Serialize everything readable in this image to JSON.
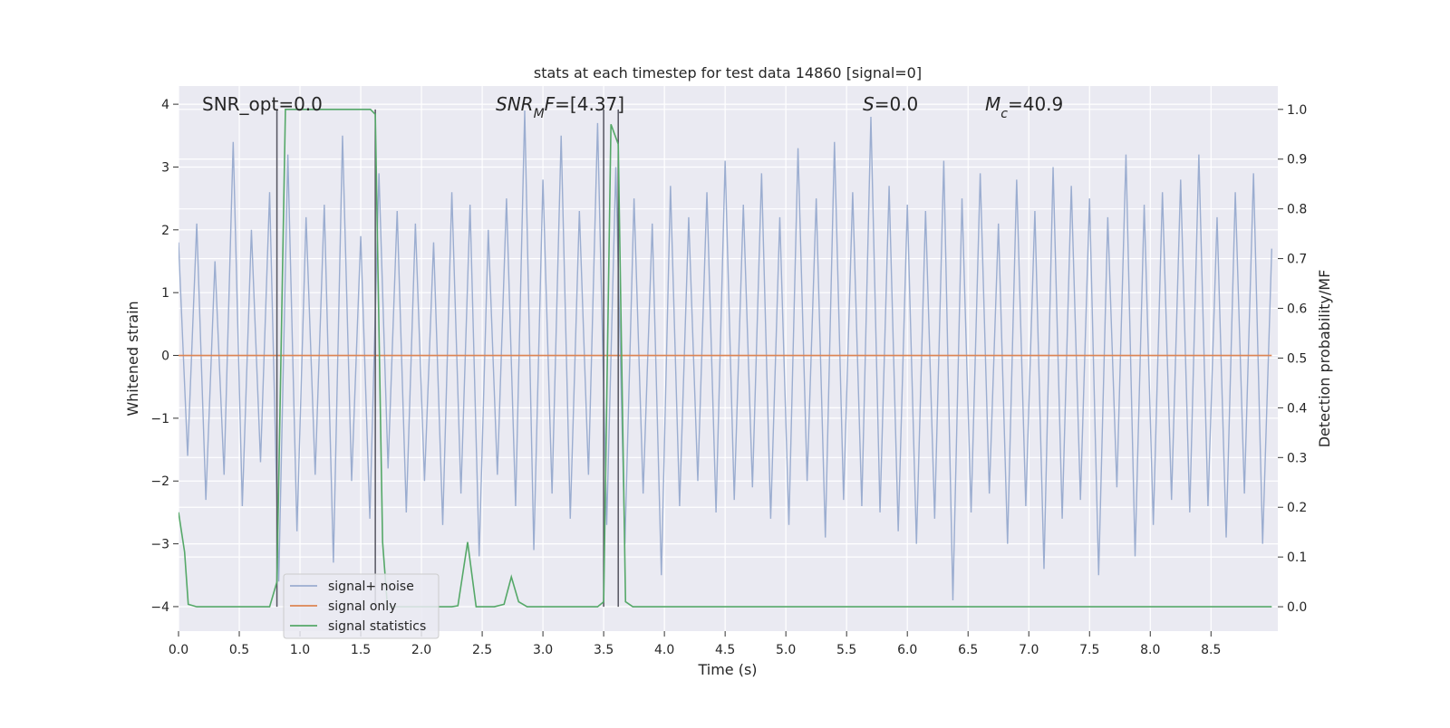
{
  "chart_data": {
    "type": "line",
    "title": "stats at each timestep for test data 14860 [signal=0]",
    "xlabel": "Time (s)",
    "ylabel": "Whitened strain",
    "y2label": "Detection probability/MF",
    "xlim": [
      0,
      9.05
    ],
    "ylim": [
      -4.39,
      4.29
    ],
    "y2lim": [
      -0.049,
      1.047
    ],
    "xticks": [
      {
        "value": 0,
        "label": "0.0"
      },
      0.5,
      {
        "value": 1,
        "label": "1.0"
      },
      1.5,
      {
        "value": 2,
        "label": "2.0"
      },
      2.5,
      {
        "value": 3,
        "label": "3.0"
      },
      3.5,
      {
        "value": 4,
        "label": "4.0"
      },
      4.5,
      {
        "value": 5,
        "label": "5.0"
      },
      5.5,
      {
        "value": 6,
        "label": "6.0"
      },
      6.5,
      {
        "value": 7,
        "label": "7.0"
      },
      7.5,
      {
        "value": 8,
        "label": "8.0"
      },
      8.5
    ],
    "yticks": [
      {
        "value": -4,
        "label": "−4"
      },
      {
        "value": -3,
        "label": "−3"
      },
      {
        "value": -2,
        "label": "−2"
      },
      {
        "value": -1,
        "label": "−1"
      },
      0,
      1,
      2,
      3,
      4
    ],
    "y2ticks": [
      {
        "value": 0,
        "label": "0.0"
      },
      0.1,
      0.2,
      0.3,
      0.4,
      0.5,
      0.6,
      0.7,
      0.8,
      0.9,
      {
        "value": 1,
        "label": "1.0"
      }
    ],
    "grid": true,
    "annotations": [
      [
        [
          "SNR_opt=0.0",
          "normal"
        ]
      ],
      [
        [
          "SNR",
          "italic"
        ],
        [
          "M",
          "sub"
        ],
        [
          "F",
          "italic"
        ],
        [
          "=[4.37]",
          "normal"
        ]
      ],
      [
        [
          "S",
          "italic"
        ],
        [
          "=0.0",
          "normal"
        ]
      ],
      [
        [
          "M",
          "italic"
        ],
        [
          "c",
          "sub"
        ],
        [
          "=40.9",
          "normal"
        ]
      ]
    ],
    "vlines": [
      0.81,
      1.62,
      3.5,
      3.62
    ],
    "vline_color": "#555560",
    "series": [
      {
        "name": "signal+ noise",
        "color": "#9badd0",
        "x": [
          0,
          0.075,
          0.15,
          0.225,
          0.3,
          0.375,
          0.45,
          0.525,
          0.6,
          0.675,
          0.75,
          0.825,
          0.9,
          0.975,
          1.05,
          1.125,
          1.2,
          1.275,
          1.35,
          1.425,
          1.5,
          1.575,
          1.65,
          1.725,
          1.8,
          1.875,
          1.95,
          2.025,
          2.1,
          2.175,
          2.25,
          2.325,
          2.4,
          2.475,
          2.55,
          2.625,
          2.7,
          2.775,
          2.85,
          2.925,
          3,
          3.075,
          3.15,
          3.225,
          3.3,
          3.375,
          3.45,
          3.525,
          3.6,
          3.675,
          3.75,
          3.825,
          3.9,
          3.975,
          4.05,
          4.125,
          4.2,
          4.275,
          4.35,
          4.425,
          4.5,
          4.575,
          4.65,
          4.725,
          4.8,
          4.875,
          4.95,
          5.025,
          5.1,
          5.175,
          5.25,
          5.325,
          5.4,
          5.475,
          5.55,
          5.625,
          5.7,
          5.775,
          5.85,
          5.925,
          6,
          6.075,
          6.15,
          6.225,
          6.3,
          6.375,
          6.45,
          6.525,
          6.6,
          6.675,
          6.75,
          6.825,
          6.9,
          6.975,
          7.05,
          7.125,
          7.2,
          7.275,
          7.35,
          7.425,
          7.5,
          7.575,
          7.65,
          7.725,
          7.8,
          7.875,
          7.95,
          8.025,
          8.1,
          8.175,
          8.25,
          8.325,
          8.4,
          8.475,
          8.55,
          8.625,
          8.7,
          8.775,
          8.85,
          8.925,
          9
        ],
        "values": [
          1.8,
          -1.6,
          2.1,
          -2.3,
          1.5,
          -1.9,
          3.4,
          -2.4,
          2.0,
          -1.7,
          2.6,
          -3.6,
          3.2,
          -2.8,
          2.2,
          -1.9,
          2.4,
          -3.3,
          3.5,
          -2.0,
          1.9,
          -2.6,
          2.9,
          -1.8,
          2.3,
          -2.5,
          2.1,
          -2.0,
          1.8,
          -2.7,
          2.6,
          -2.2,
          2.4,
          -3.2,
          2.0,
          -1.9,
          2.5,
          -2.4,
          3.9,
          -3.1,
          2.8,
          -2.2,
          3.5,
          -2.6,
          2.3,
          -1.9,
          3.7,
          -2.7,
          3.0,
          -3.0,
          2.5,
          -2.2,
          2.1,
          -3.5,
          2.7,
          -2.4,
          2.2,
          -2.0,
          2.6,
          -2.5,
          3.1,
          -2.3,
          2.4,
          -2.1,
          2.9,
          -2.6,
          2.2,
          -2.7,
          3.3,
          -2.0,
          2.5,
          -2.9,
          3.4,
          -2.3,
          2.6,
          -2.4,
          3.8,
          -2.5,
          2.7,
          -2.8,
          2.4,
          -3.0,
          2.3,
          -2.6,
          3.1,
          -3.9,
          2.5,
          -2.5,
          2.9,
          -2.2,
          2.1,
          -3.0,
          2.8,
          -2.4,
          2.3,
          -3.4,
          3.0,
          -2.6,
          2.7,
          -2.3,
          2.5,
          -3.5,
          2.2,
          -2.1,
          3.2,
          -3.2,
          2.4,
          -2.7,
          2.6,
          -2.3,
          2.8,
          -2.5,
          3.2,
          -2.4,
          2.2,
          -2.9,
          2.6,
          -2.2,
          2.9,
          -3.0,
          1.7
        ]
      },
      {
        "name": "signal only",
        "color": "#dd8452",
        "x": [
          0,
          9
        ],
        "values": [
          0,
          0
        ]
      },
      {
        "name": "signal statistics",
        "color": "#55a868",
        "axis": "y2",
        "x": [
          0,
          0.05,
          0.08,
          0.15,
          0.75,
          0.81,
          0.88,
          1.2,
          1.58,
          1.62,
          1.68,
          1.72,
          2.25,
          2.3,
          2.38,
          2.45,
          2.6,
          2.68,
          2.74,
          2.8,
          2.87,
          3.45,
          3.5,
          3.56,
          3.62,
          3.68,
          3.74,
          9
        ],
        "values": [
          0.19,
          0.11,
          0.005,
          0,
          0,
          0.05,
          1.0,
          1.0,
          1.0,
          0.99,
          0.13,
          0,
          0,
          0.002,
          0.13,
          0,
          0,
          0.005,
          0.06,
          0.01,
          0,
          0,
          0.01,
          0.97,
          0.93,
          0.01,
          0,
          0
        ]
      }
    ]
  }
}
